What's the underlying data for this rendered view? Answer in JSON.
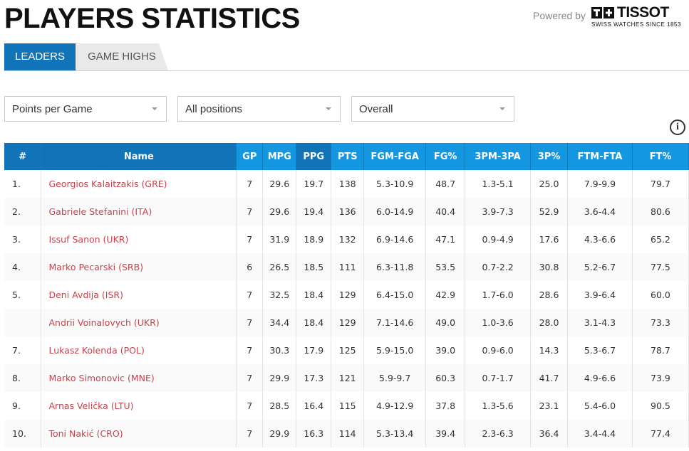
{
  "page_title": "PLAYERS STATISTICS",
  "powered_by": "Powered by",
  "brand": {
    "name": "TISSOT",
    "tagline": "SWISS WATCHES SINCE 1853"
  },
  "tabs": [
    {
      "label": "LEADERS",
      "active": true
    },
    {
      "label": "GAME HIGHS",
      "active": false
    }
  ],
  "filters": {
    "stat": "Points per Game",
    "position": "All positions",
    "scope": "Overall"
  },
  "info_icon": "i",
  "table": {
    "columns": [
      "#",
      "Name",
      "GP",
      "MPG",
      "PPG",
      "PTS",
      "FGM-FGA",
      "FG%",
      "3PM-3PA",
      "3P%",
      "FTM-FTA",
      "FT%"
    ],
    "rows": [
      {
        "rank": "1.",
        "name": "Georgios Kalaitzakis (GRE)",
        "gp": "7",
        "mpg": "29.6",
        "ppg": "19.7",
        "pts": "138",
        "fgm_fga": "5.3-10.9",
        "fg_pct": "48.7",
        "tpm_tpa": "1.3-5.1",
        "tp_pct": "25.0",
        "ftm_fta": "7.9-9.9",
        "ft_pct": "79.7"
      },
      {
        "rank": "2.",
        "name": "Gabriele Stefanini (ITA)",
        "gp": "7",
        "mpg": "29.6",
        "ppg": "19.4",
        "pts": "136",
        "fgm_fga": "6.0-14.9",
        "fg_pct": "40.4",
        "tpm_tpa": "3.9-7.3",
        "tp_pct": "52.9",
        "ftm_fta": "3.6-4.4",
        "ft_pct": "80.6"
      },
      {
        "rank": "3.",
        "name": "Issuf Sanon (UKR)",
        "gp": "7",
        "mpg": "31.9",
        "ppg": "18.9",
        "pts": "132",
        "fgm_fga": "6.9-14.6",
        "fg_pct": "47.1",
        "tpm_tpa": "0.9-4.9",
        "tp_pct": "17.6",
        "ftm_fta": "4.3-6.6",
        "ft_pct": "65.2"
      },
      {
        "rank": "4.",
        "name": "Marko Pecarski (SRB)",
        "gp": "6",
        "mpg": "26.5",
        "ppg": "18.5",
        "pts": "111",
        "fgm_fga": "6.3-11.8",
        "fg_pct": "53.5",
        "tpm_tpa": "0.7-2.2",
        "tp_pct": "30.8",
        "ftm_fta": "5.2-6.7",
        "ft_pct": "77.5"
      },
      {
        "rank": "5.",
        "name": "Deni Avdija (ISR)",
        "gp": "7",
        "mpg": "32.5",
        "ppg": "18.4",
        "pts": "129",
        "fgm_fga": "6.4-15.0",
        "fg_pct": "42.9",
        "tpm_tpa": "1.7-6.0",
        "tp_pct": "28.6",
        "ftm_fta": "3.9-6.4",
        "ft_pct": "60.0"
      },
      {
        "rank": "",
        "name": "Andrii Voinalovych (UKR)",
        "gp": "7",
        "mpg": "34.4",
        "ppg": "18.4",
        "pts": "129",
        "fgm_fga": "7.1-14.6",
        "fg_pct": "49.0",
        "tpm_tpa": "1.0-3.6",
        "tp_pct": "28.0",
        "ftm_fta": "3.1-4.3",
        "ft_pct": "73.3"
      },
      {
        "rank": "7.",
        "name": "Lukasz Kolenda (POL)",
        "gp": "7",
        "mpg": "30.3",
        "ppg": "17.9",
        "pts": "125",
        "fgm_fga": "5.9-15.0",
        "fg_pct": "39.0",
        "tpm_tpa": "0.9-6.0",
        "tp_pct": "14.3",
        "ftm_fta": "5.3-6.7",
        "ft_pct": "78.7"
      },
      {
        "rank": "8.",
        "name": "Marko Simonovic (MNE)",
        "gp": "7",
        "mpg": "29.9",
        "ppg": "17.3",
        "pts": "121",
        "fgm_fga": "5.9-9.7",
        "fg_pct": "60.3",
        "tpm_tpa": "0.7-1.7",
        "tp_pct": "41.7",
        "ftm_fta": "4.9-6.6",
        "ft_pct": "73.9"
      },
      {
        "rank": "9.",
        "name": "Arnas Velička (LTU)",
        "gp": "7",
        "mpg": "28.5",
        "ppg": "16.4",
        "pts": "115",
        "fgm_fga": "4.9-12.9",
        "fg_pct": "37.8",
        "tpm_tpa": "1.3-5.6",
        "tp_pct": "23.1",
        "ftm_fta": "5.4-6.0",
        "ft_pct": "90.5"
      },
      {
        "rank": "10.",
        "name": "Toni Nakić (CRO)",
        "gp": "7",
        "mpg": "29.9",
        "ppg": "16.3",
        "pts": "114",
        "fgm_fga": "5.3-13.4",
        "fg_pct": "39.4",
        "tpm_tpa": "2.3-6.3",
        "tp_pct": "36.4",
        "ftm_fta": "3.4-4.4",
        "ft_pct": "77.4"
      }
    ]
  },
  "colors": {
    "accent_dark": "#1173b8",
    "accent": "#1496e0",
    "player_link": "#c8424b"
  }
}
